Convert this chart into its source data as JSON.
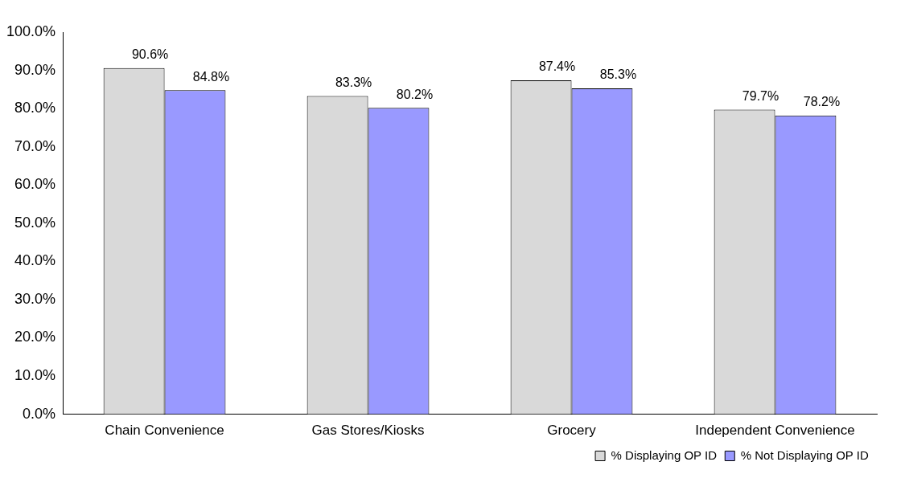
{
  "chart_data": {
    "type": "bar",
    "categories": [
      "Chain Convenience",
      "Gas Stores/Kiosks",
      "Grocery",
      "Independent Convenience"
    ],
    "series": [
      {
        "name": "% Displaying OP ID",
        "color": "#d9d9d9",
        "values": [
          90.6,
          83.3,
          87.4,
          79.7
        ]
      },
      {
        "name": "% Not Displaying OP ID",
        "color": "#9999ff",
        "values": [
          84.8,
          80.2,
          85.3,
          78.2
        ]
      }
    ],
    "ylim": [
      0,
      100
    ],
    "yticks": [
      {
        "value": 0,
        "label": "0.0%"
      },
      {
        "value": 10,
        "label": "10.0%"
      },
      {
        "value": 20,
        "label": "20.0%"
      },
      {
        "value": 30,
        "label": "30.0%"
      },
      {
        "value": 40,
        "label": "40.0%"
      },
      {
        "value": 50,
        "label": "50.0%"
      },
      {
        "value": 60,
        "label": "60.0%"
      },
      {
        "value": 70,
        "label": "70.0%"
      },
      {
        "value": 80,
        "label": "80.0%"
      },
      {
        "value": 90,
        "label": "90.0%"
      },
      {
        "value": 100,
        "label": "100.0%"
      }
    ],
    "value_labels": [
      [
        "90.6%",
        "83.3%",
        "87.4%",
        "79.7%"
      ],
      [
        "84.8%",
        "80.2%",
        "85.3%",
        "78.2%"
      ]
    ],
    "legend": "bottom right",
    "grid": false
  }
}
